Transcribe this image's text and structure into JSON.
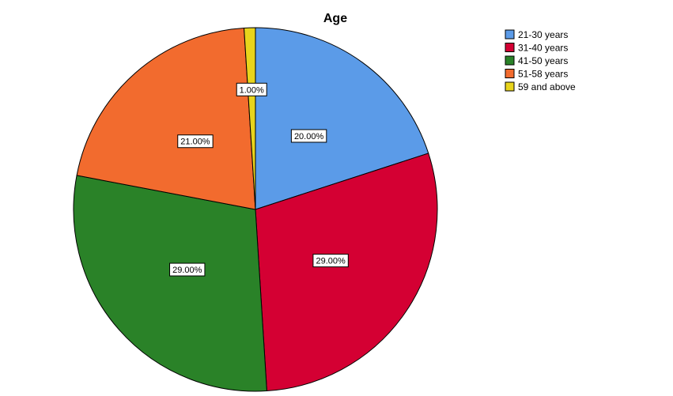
{
  "chart_data": {
    "type": "pie",
    "title": "Age",
    "categories": [
      "21-30 years",
      "31-40 years",
      "41-50 years",
      "51-58 years",
      "59 and above"
    ],
    "values": [
      20,
      29,
      29,
      21,
      1
    ],
    "data_labels": [
      "20.00%",
      "29.00%",
      "29.00%",
      "21.00%",
      "1.00%"
    ],
    "colors": [
      "#5B9BE8",
      "#D40033",
      "#2A8228",
      "#F26B2E",
      "#E8D41C"
    ],
    "start_angle_deg": 0,
    "direction": "clockwise",
    "legend_position": "top-right"
  }
}
